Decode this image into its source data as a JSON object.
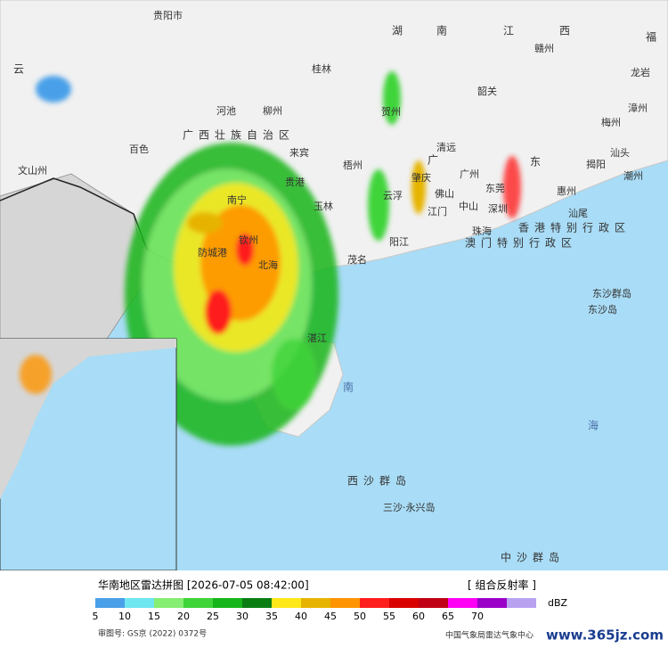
{
  "map": {
    "title": "华南地区雷达拼图 [2026-07-05 08:42:00]",
    "product": "[ 组合反射率 ]",
    "unit": "dBZ",
    "legend": {
      "ticks": [
        5,
        10,
        15,
        20,
        25,
        30,
        35,
        40,
        45,
        50,
        55,
        60,
        65,
        70
      ],
      "colors": [
        "#4aa0e8",
        "#6fe6f0",
        "#86ee72",
        "#3fd43a",
        "#17b51b",
        "#0a7d12",
        "#ffe81a",
        "#e6b400",
        "#ff9400",
        "#ff1e1e",
        "#d90000",
        "#c00014",
        "#ff00f5",
        "#9a00c8",
        "#b8a2f0"
      ]
    },
    "places": [
      "湖",
      "南",
      "江",
      "西",
      "福",
      "云",
      "贵阳市",
      "桂林",
      "柳州",
      "河池",
      "梧州",
      "贺州",
      "韶关",
      "赣州",
      "龙岩",
      "漳州",
      "梅州",
      "汕头",
      "揭阳",
      "潮州",
      "广州",
      "肇庆",
      "云浮",
      "清远",
      "东莞",
      "深圳",
      "惠州",
      "汕尾",
      "江门",
      "中山",
      "珠海",
      "佛山",
      "阳江",
      "茂名",
      "湛江",
      "北海",
      "钦州",
      "防城港",
      "南宁",
      "百色",
      "玉林",
      "贵港",
      "来宾",
      "广西壮族自治区",
      "香港特别行政区",
      "澳门特别行政区",
      "东沙群岛",
      "东沙岛",
      "南",
      "海",
      "西沙群岛",
      "三沙·永兴岛",
      "中沙群岛",
      "文山州",
      "广",
      "东"
    ],
    "footer": {
      "approval": "审图号: GS京 (2022) 0372号",
      "center": "中国气象局雷达气象中心",
      "watermark": "www.365jz.com"
    }
  }
}
